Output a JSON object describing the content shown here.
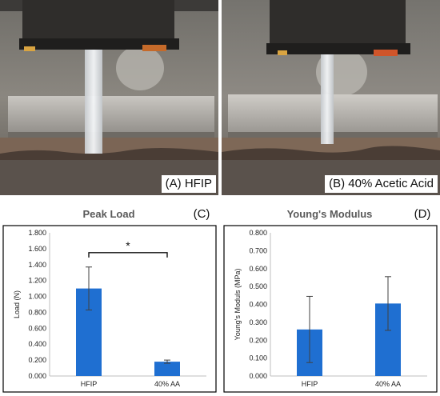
{
  "photos": [
    {
      "label": "(A) HFIP",
      "icon": "tensile-test-photo-hfip"
    },
    {
      "label": "(B) 40% Acetic Acid",
      "icon": "tensile-test-photo-acetic-acid"
    }
  ],
  "colors": {
    "bar": "#1f6fd1",
    "error": "#404040",
    "frame": "#000000"
  },
  "chart_data": [
    {
      "type": "bar",
      "panel_letter": "(C)",
      "title": "Peak Load",
      "ylabel": "Load (N)",
      "xlabel": "",
      "categories": [
        "HFIP",
        "40% AA"
      ],
      "values": [
        1.1,
        0.18
      ],
      "errors": [
        0.27,
        0.02
      ],
      "ylim": [
        0,
        1.8
      ],
      "yticks": [
        0,
        0.2,
        0.4,
        0.6,
        0.8,
        1.0,
        1.2,
        1.4,
        1.6,
        1.8
      ],
      "tick_labels": [
        "0.000",
        "0.200",
        "0.400",
        "0.600",
        "0.800",
        "1.000",
        "1.200",
        "1.400",
        "1.600",
        "1.800"
      ],
      "significance": {
        "label": "*",
        "between": [
          0,
          1
        ],
        "y": 1.55
      },
      "grid": false
    },
    {
      "type": "bar",
      "panel_letter": "(D)",
      "title": "Young's Modulus",
      "ylabel": "Young's Moduls (MPa)",
      "xlabel": "",
      "categories": [
        "HFIP",
        "40% AA"
      ],
      "values": [
        0.26,
        0.405
      ],
      "errors": [
        0.185,
        0.15
      ],
      "ylim": [
        0,
        0.8
      ],
      "yticks": [
        0,
        0.1,
        0.2,
        0.3,
        0.4,
        0.5,
        0.6,
        0.7,
        0.8
      ],
      "tick_labels": [
        "0.000",
        "0.100",
        "0.200",
        "0.300",
        "0.400",
        "0.500",
        "0.600",
        "0.700",
        "0.800"
      ],
      "grid": false
    }
  ]
}
